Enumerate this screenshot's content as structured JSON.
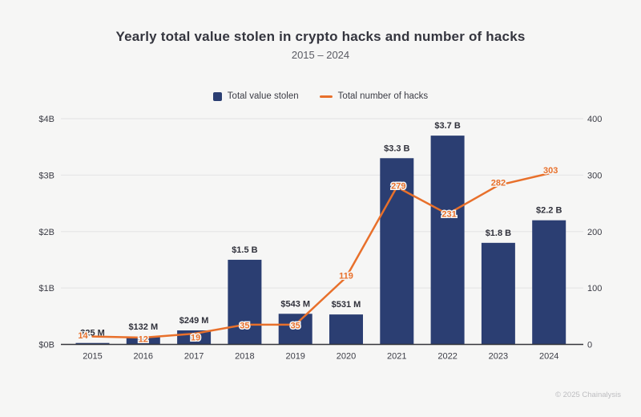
{
  "header": {
    "title": "Yearly total value stolen in crypto hacks and number of hacks",
    "subtitle": "2015 – 2024"
  },
  "legend": {
    "items": [
      {
        "label": "Total value stolen",
        "type": "bar",
        "color": "#2b3e72"
      },
      {
        "label": "Total number of hacks",
        "type": "line",
        "color": "#e8702b"
      }
    ]
  },
  "footer": {
    "copyright": "© 2025 Chainalysis"
  },
  "colors": {
    "background": "#f6f6f5",
    "bar": "#2b3e72",
    "line": "#e8702b",
    "gridline": "#e7e7e7",
    "axis": "#35363c"
  },
  "chart_data": {
    "type": "bar+line",
    "title": "Yearly total value stolen in crypto hacks and number of hacks",
    "subtitle": "2015 – 2024",
    "categories": [
      "2015",
      "2016",
      "2017",
      "2018",
      "2019",
      "2020",
      "2021",
      "2022",
      "2023",
      "2024"
    ],
    "series": [
      {
        "name": "Total value stolen",
        "type": "bar",
        "axis": "left",
        "color": "#2b3e72",
        "values_usd_billions": [
          0.025,
          0.132,
          0.249,
          1.5,
          0.543,
          0.531,
          3.3,
          3.7,
          1.8,
          2.2
        ],
        "value_labels": [
          "$25 M",
          "$132 M",
          "$249 M",
          "$1.5 B",
          "$543 M",
          "$531 M",
          "$3.3 B",
          "$3.7 B",
          "$1.8 B",
          "$2.2 B"
        ]
      },
      {
        "name": "Total number of hacks",
        "type": "line",
        "axis": "right",
        "color": "#e8702b",
        "values": [
          14,
          12,
          19,
          35,
          35,
          119,
          279,
          231,
          282,
          303
        ],
        "value_labels": [
          "14",
          "12",
          "19",
          "35",
          "35",
          "119",
          "279",
          "231",
          "282",
          "303"
        ]
      }
    ],
    "left_axis": {
      "ticks": [
        "$0B",
        "$1B",
        "$2B",
        "$3B",
        "$4B"
      ],
      "range_billions": [
        0,
        4
      ]
    },
    "right_axis": {
      "ticks": [
        "0",
        "100",
        "200",
        "300",
        "400"
      ],
      "range": [
        0,
        400
      ]
    },
    "grid": true,
    "legend_position": "top"
  }
}
